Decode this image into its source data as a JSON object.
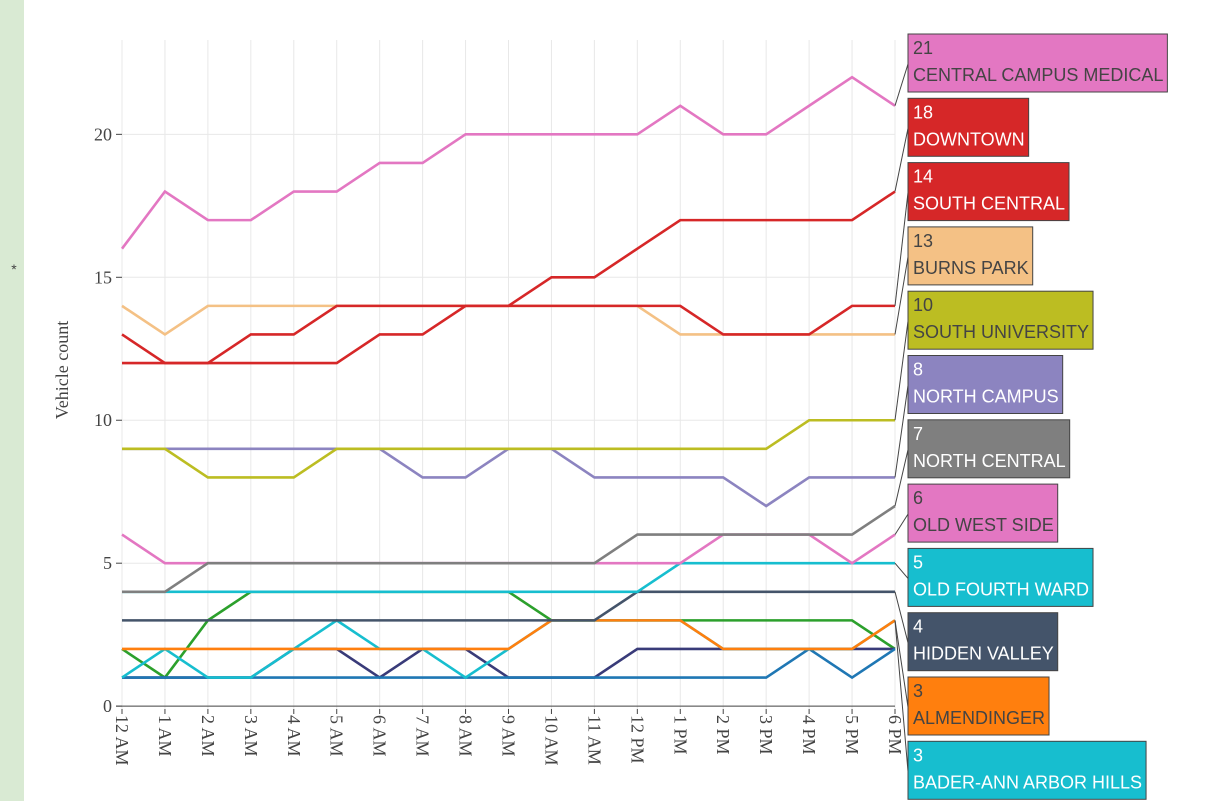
{
  "sidebar_marker": "*",
  "chart_data": {
    "type": "line",
    "y_label": "Vehicle count",
    "categories": [
      "12 AM",
      "1 AM",
      "2 AM",
      "3 AM",
      "4 AM",
      "5 AM",
      "6 AM",
      "7 AM",
      "8 AM",
      "9 AM",
      "10 AM",
      "11 AM",
      "12 PM",
      "1 PM",
      "2 PM",
      "3 PM",
      "4 PM",
      "5 PM",
      "6 PM"
    ],
    "ylim": [
      -0.1,
      23.3
    ],
    "yticks": [
      0,
      5,
      10,
      15,
      20
    ],
    "grid": true,
    "series": [
      {
        "color": "#2ca02c",
        "values": [
          2,
          1,
          3,
          4,
          4,
          4,
          4,
          4,
          4,
          4,
          3,
          3,
          3,
          3,
          3,
          3,
          3,
          3,
          2
        ]
      },
      {
        "color": "#393b79",
        "values": [
          1,
          1,
          1,
          1,
          2,
          2,
          1,
          2,
          2,
          1,
          1,
          1,
          2,
          2,
          2,
          2,
          2,
          2,
          2
        ]
      },
      {
        "color": "#1f77b4",
        "values": [
          1,
          1,
          1,
          1,
          1,
          1,
          1,
          1,
          1,
          1,
          1,
          1,
          1,
          1,
          1,
          1,
          2,
          1,
          2
        ]
      },
      {
        "name": "BADER-ANN ARBOR HILLS",
        "color": "#17becf",
        "values": [
          1,
          2,
          1,
          1,
          2,
          3,
          2,
          2,
          1,
          2,
          3,
          3,
          3,
          3,
          2,
          2,
          2,
          2,
          3
        ]
      },
      {
        "name": "ALMENDINGER",
        "color": "#ff7f0e",
        "values": [
          2,
          2,
          2,
          2,
          2,
          2,
          2,
          2,
          2,
          2,
          3,
          3,
          3,
          3,
          2,
          2,
          2,
          2,
          3
        ]
      },
      {
        "name": "HIDDEN VALLEY",
        "color": "#44546a",
        "values": [
          3,
          3,
          3,
          3,
          3,
          3,
          3,
          3,
          3,
          3,
          3,
          3,
          4,
          4,
          4,
          4,
          4,
          4,
          4
        ]
      },
      {
        "name": "OLD FOURTH WARD",
        "color": "#17becf",
        "values": [
          4,
          4,
          4,
          4,
          4,
          4,
          4,
          4,
          4,
          4,
          4,
          4,
          4,
          5,
          5,
          5,
          5,
          5,
          5
        ]
      },
      {
        "name": "OLD WEST SIDE",
        "color": "#e377c2",
        "values": [
          6,
          5,
          5,
          5,
          5,
          5,
          5,
          5,
          5,
          5,
          5,
          5,
          5,
          5,
          6,
          6,
          6,
          5,
          6
        ]
      },
      {
        "name": "NORTH CENTRAL",
        "color": "#7f7f7f",
        "values": [
          4,
          4,
          5,
          5,
          5,
          5,
          5,
          5,
          5,
          5,
          5,
          5,
          6,
          6,
          6,
          6,
          6,
          6,
          7
        ]
      },
      {
        "name": "NORTH CAMPUS",
        "color": "#8c84c0",
        "values": [
          9,
          9,
          9,
          9,
          9,
          9,
          9,
          8,
          8,
          9,
          9,
          8,
          8,
          8,
          8,
          7,
          8,
          8,
          8
        ]
      },
      {
        "name": "SOUTH UNIVERSITY",
        "color": "#bcbd22",
        "values": [
          9,
          9,
          8,
          8,
          8,
          9,
          9,
          9,
          9,
          9,
          9,
          9,
          9,
          9,
          9,
          9,
          10,
          10,
          10
        ]
      },
      {
        "name": "BURNS PARK",
        "color": "#f4c185",
        "values": [
          14,
          13,
          14,
          14,
          14,
          14,
          14,
          14,
          14,
          14,
          14,
          14,
          14,
          13,
          13,
          13,
          13,
          13,
          13
        ]
      },
      {
        "name": "SOUTH CENTRAL",
        "color": "#d62728",
        "values": [
          13,
          12,
          12,
          13,
          13,
          14,
          14,
          14,
          14,
          14,
          14,
          14,
          14,
          14,
          13,
          13,
          13,
          14,
          14
        ]
      },
      {
        "name": "DOWNTOWN",
        "color": "#d62728",
        "values": [
          12,
          12,
          12,
          12,
          12,
          12,
          13,
          13,
          14,
          14,
          15,
          15,
          16,
          17,
          17,
          17,
          17,
          17,
          18
        ]
      },
      {
        "name": "CENTRAL CAMPUS MEDICAL",
        "color": "#e377c2",
        "values": [
          16,
          18,
          17,
          17,
          18,
          18,
          19,
          19,
          20,
          20,
          20,
          20,
          20,
          21,
          20,
          20,
          21,
          22,
          21
        ]
      }
    ]
  }
}
